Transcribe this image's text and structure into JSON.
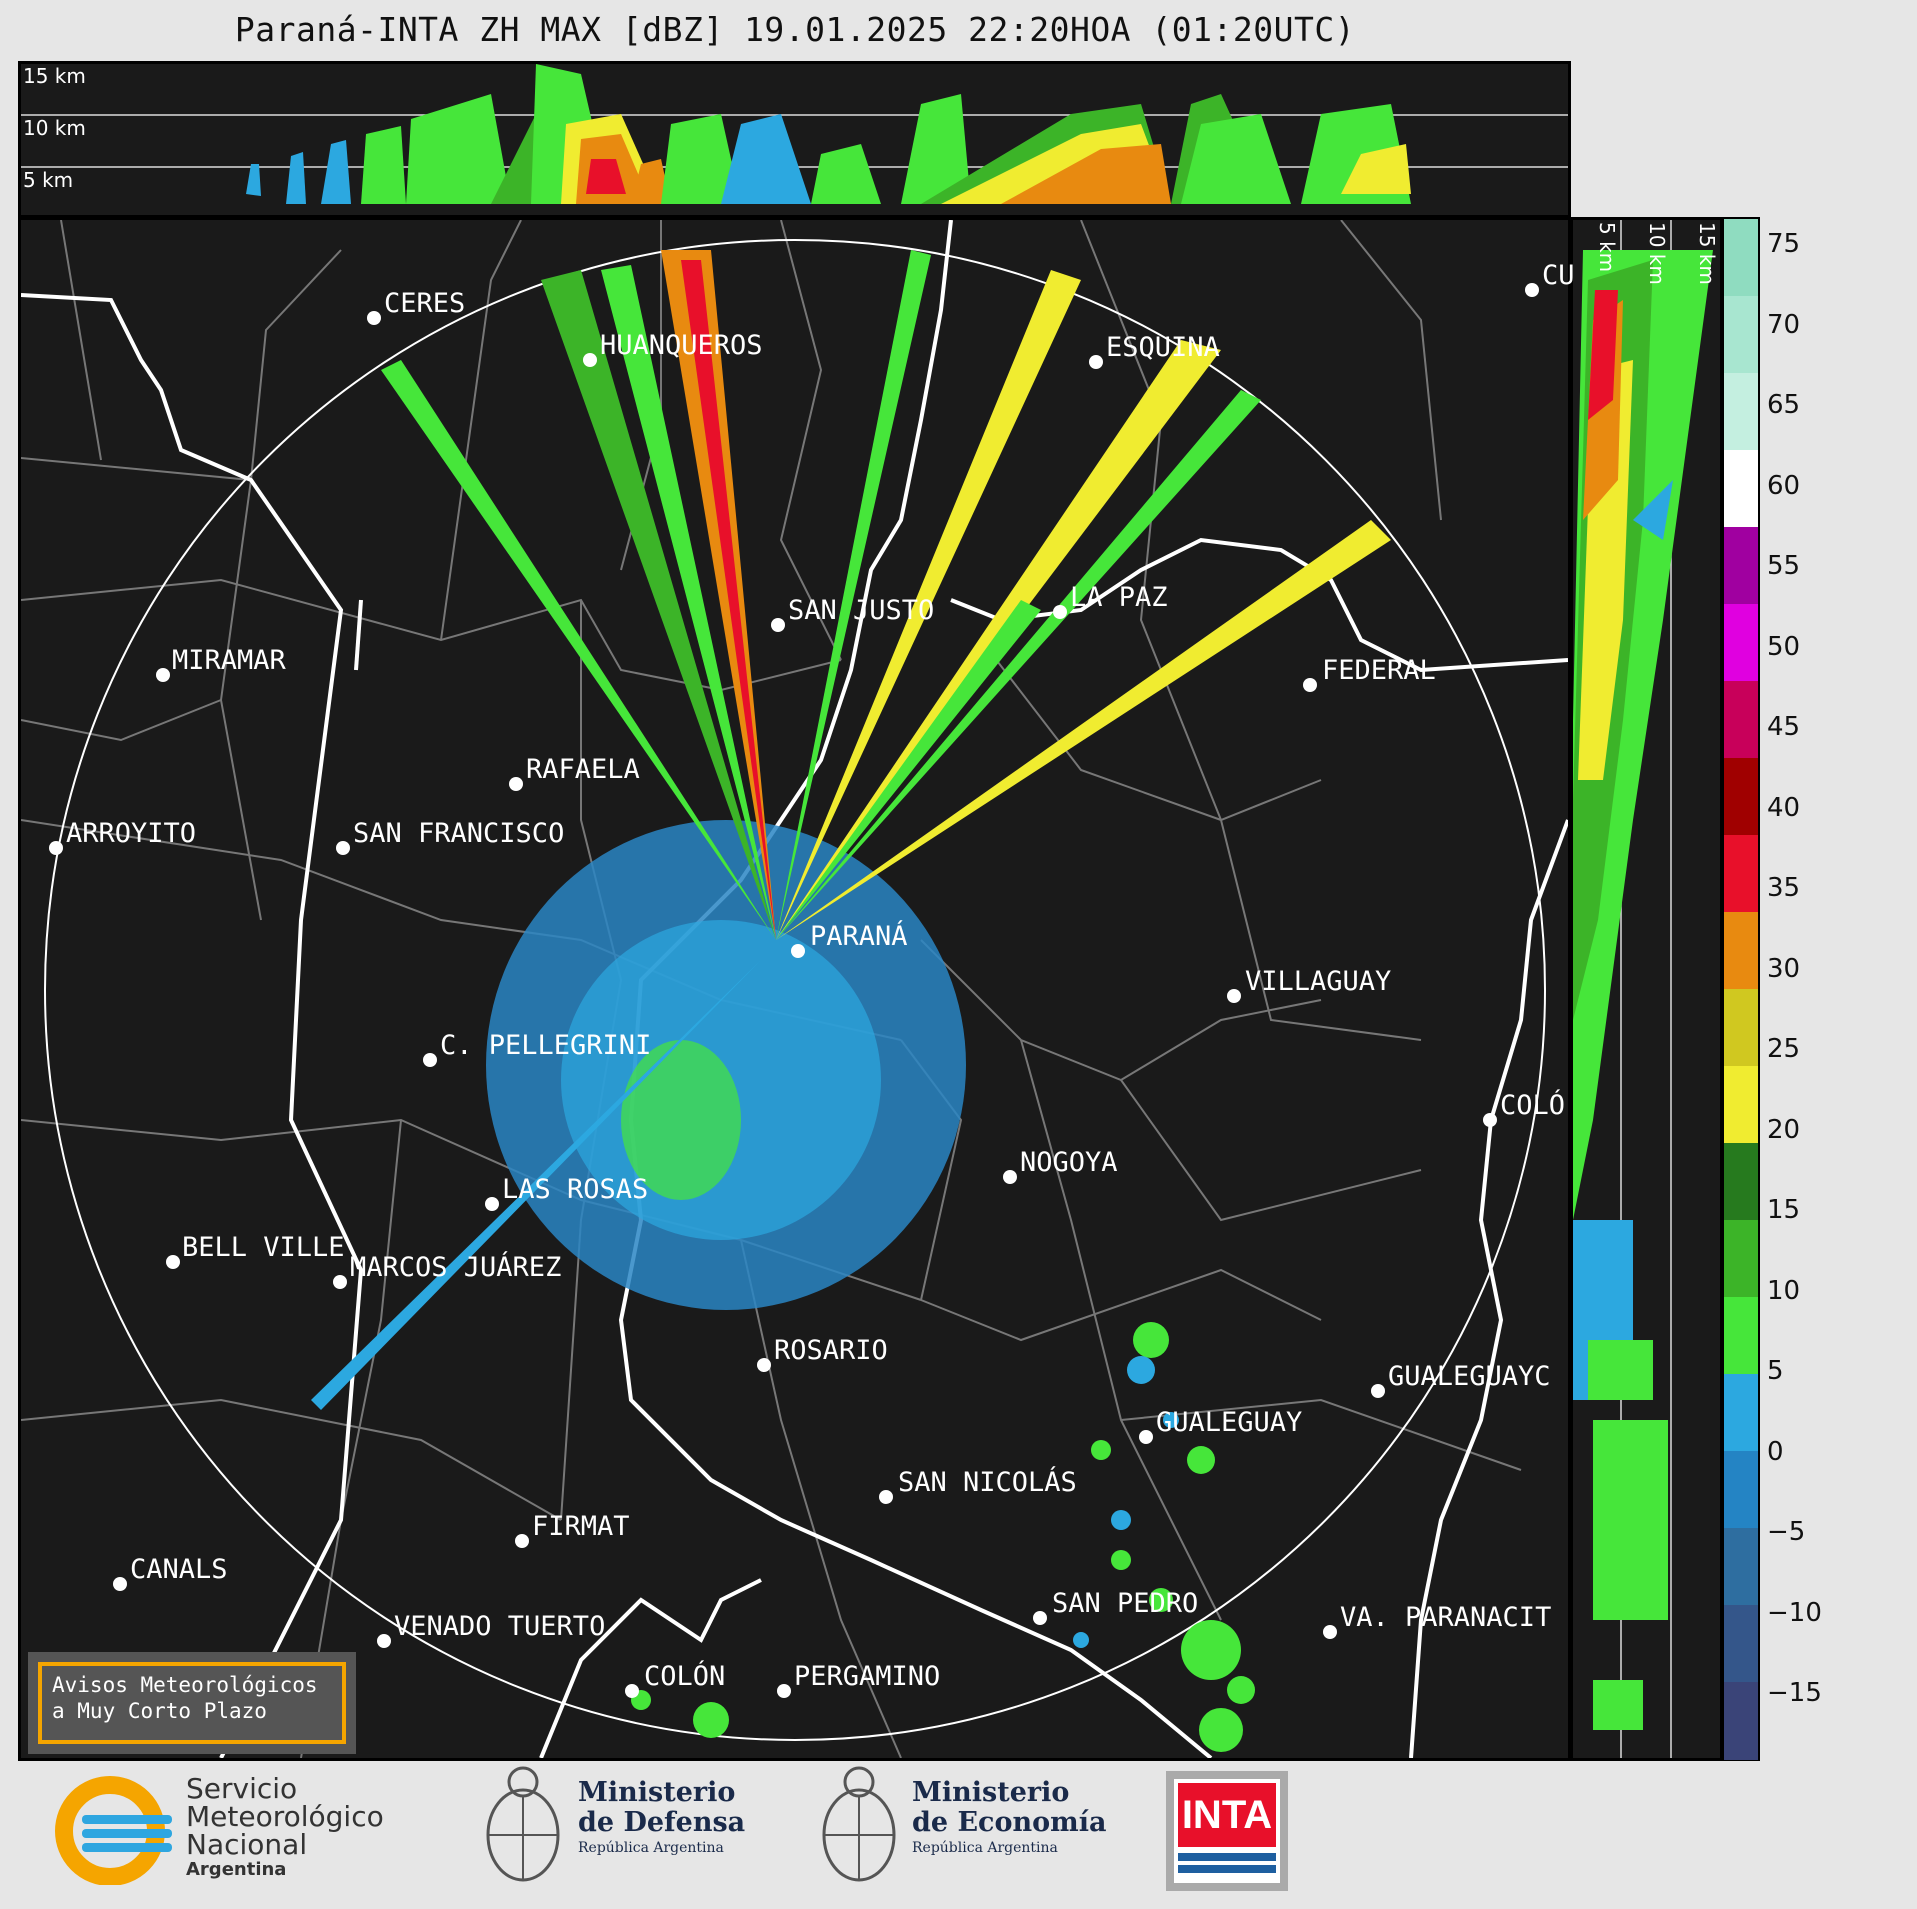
{
  "title": "Paraná-INTA ZH MAX [dBZ] 19.01.2025 22:20HOA (01:20UTC)",
  "top_panel": {
    "height_labels": [
      "15 km",
      "10 km",
      "5 km"
    ]
  },
  "side_panel": {
    "height_labels": [
      "5 km",
      "10 km",
      "15 km"
    ]
  },
  "colorbar": {
    "ticks": [
      "75",
      "70",
      "65",
      "60",
      "55",
      "50",
      "45",
      "40",
      "35",
      "30",
      "25",
      "20",
      "15",
      "10",
      "5",
      "0",
      "−5",
      "−10",
      "−15"
    ],
    "colors": [
      "#8fdcc0",
      "#a8e6d0",
      "#c4efe0",
      "#ffffff",
      "#a000a0",
      "#e000e0",
      "#c8005a",
      "#a00000",
      "#e8102a",
      "#e88a10",
      "#d0c820",
      "#f0ec30",
      "#267a1e",
      "#3cb428",
      "#46e63a",
      "#2ca8e0",
      "#2484c4",
      "#2e6ea0",
      "#34568a",
      "#3a4478"
    ]
  },
  "cities": [
    {
      "name": "CERES"
    },
    {
      "name": "HUANQUEROS"
    },
    {
      "name": "ESQUINA"
    },
    {
      "name": "CU"
    },
    {
      "name": "MIRAMAR"
    },
    {
      "name": "SAN JUSTO"
    },
    {
      "name": "LA PAZ"
    },
    {
      "name": "FEDERAL"
    },
    {
      "name": "RAFAELA"
    },
    {
      "name": "ARROYITO"
    },
    {
      "name": "SAN FRANCISCO"
    },
    {
      "name": "PARANÁ"
    },
    {
      "name": "VILLAGUAY"
    },
    {
      "name": "C. PELLEGRINI"
    },
    {
      "name": "COLÓ"
    },
    {
      "name": "NOGOYA"
    },
    {
      "name": "LAS ROSAS"
    },
    {
      "name": "BELL VILLE"
    },
    {
      "name": "MARCOS JUÁREZ"
    },
    {
      "name": "ROSARIO"
    },
    {
      "name": "GUALEGUAYC"
    },
    {
      "name": "GUALEGUAY"
    },
    {
      "name": "SAN NICOLÁS"
    },
    {
      "name": "FIRMAT"
    },
    {
      "name": "CANALS"
    },
    {
      "name": "SAN PEDRO"
    },
    {
      "name": "VENADO TUERTO"
    },
    {
      "name": "VA. PARANACIT"
    },
    {
      "name": "COLÓN"
    },
    {
      "name": "PERGAMINO"
    }
  ],
  "aviso": {
    "line1": "Avisos Meteorológicos",
    "line2": "a Muy Corto Plazo"
  },
  "logos": {
    "smn": {
      "line1": "Servicio",
      "line2": "Meteorológico",
      "line3": "Nacional",
      "line4": "Argentina"
    },
    "defensa": {
      "line1": "Ministerio",
      "line2": "de Defensa",
      "line3": "República Argentina"
    },
    "economia": {
      "line1": "Ministerio",
      "line2": "de Economía",
      "line3": "República Argentina"
    },
    "inta": {
      "text": "INTA"
    }
  }
}
